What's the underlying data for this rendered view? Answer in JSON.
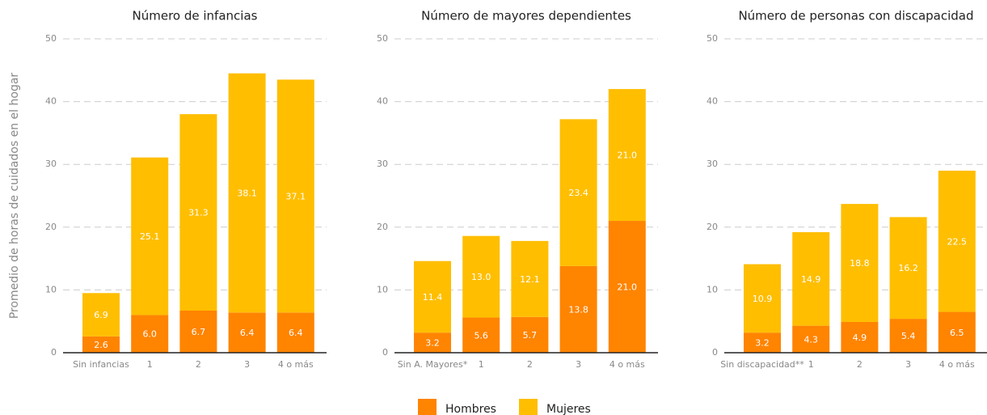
{
  "chart_data": [
    {
      "type": "bar",
      "stacked": true,
      "title": "Número de infancias",
      "ylabel": "Promedio de horas de cuidados en el hogar",
      "categories": [
        "Sin infancias",
        "1",
        "2",
        "3",
        "4 o más"
      ],
      "series": [
        {
          "name": "Hombres",
          "color": "#ff8400",
          "values": [
            2.6,
            6.0,
            6.7,
            6.4,
            6.4
          ],
          "value_labels": [
            "2.6",
            "6.0",
            "6.7",
            "6.4",
            "6.4"
          ]
        },
        {
          "name": "Mujeres",
          "color": "#ffbe00",
          "values": [
            6.9,
            25.1,
            31.3,
            38.1,
            37.1
          ],
          "value_labels": [
            "6.9",
            "25.1",
            "31.3",
            "38.1",
            "37.1"
          ]
        }
      ],
      "ylim": [
        0,
        50
      ],
      "yticks": [
        0,
        10,
        20,
        30,
        40,
        50
      ],
      "grid": true,
      "legend": "bottom"
    },
    {
      "type": "bar",
      "stacked": true,
      "title": "Número de mayores dependientes",
      "categories": [
        "Sin A. Mayores*",
        "1",
        "2",
        "3",
        "4 o más"
      ],
      "series": [
        {
          "name": "Hombres",
          "color": "#ff8400",
          "values": [
            3.2,
            5.6,
            5.7,
            13.8,
            21.0
          ],
          "value_labels": [
            "3.2",
            "5.6",
            "5.7",
            "13.8",
            "21.0"
          ]
        },
        {
          "name": "Mujeres",
          "color": "#ffbe00",
          "values": [
            11.4,
            13.0,
            12.1,
            23.4,
            21.0
          ],
          "value_labels": [
            "11.4",
            "13.0",
            "12.1",
            "23.4",
            "21.0"
          ]
        }
      ],
      "ylim": [
        0,
        50
      ],
      "yticks": [
        0,
        10,
        20,
        30,
        40,
        50
      ],
      "grid": true
    },
    {
      "type": "bar",
      "stacked": true,
      "title": "Número de personas con discapacidad",
      "categories": [
        "Sin discapacidad**",
        "1",
        "2",
        "3",
        "4 o más"
      ],
      "series": [
        {
          "name": "Hombres",
          "color": "#ff8400",
          "values": [
            3.2,
            4.3,
            4.9,
            5.4,
            6.5
          ],
          "value_labels": [
            "3.2",
            "4.3",
            "4.9",
            "5.4",
            "6.5"
          ]
        },
        {
          "name": "Mujeres",
          "color": "#ffbe00",
          "values": [
            10.9,
            14.9,
            18.8,
            16.2,
            22.5
          ],
          "value_labels": [
            "10.9",
            "14.9",
            "18.8",
            "16.2",
            "22.5"
          ]
        }
      ],
      "ylim": [
        0,
        50
      ],
      "yticks": [
        0,
        10,
        20,
        30,
        40,
        50
      ],
      "grid": true
    }
  ]
}
